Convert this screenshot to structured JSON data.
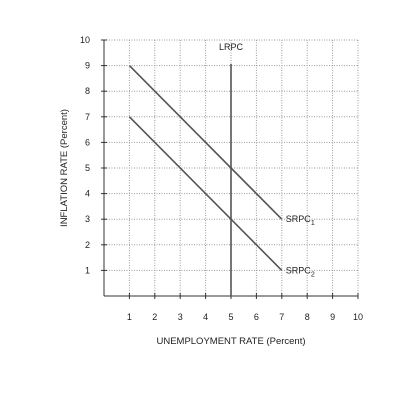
{
  "chart_data": {
    "type": "line",
    "xlabel": "UNEMPLOYMENT RATE (Percent)",
    "ylabel": "INFLATION RATE (Percent)",
    "xlim": [
      0,
      10
    ],
    "ylim": [
      0,
      10
    ],
    "x_ticks": [
      "1",
      "2",
      "3",
      "4",
      "5",
      "6",
      "7",
      "8",
      "9",
      "10"
    ],
    "y_ticks": [
      "1",
      "2",
      "3",
      "4",
      "5",
      "6",
      "7",
      "8",
      "9",
      "10"
    ],
    "grid": true,
    "series": [
      {
        "name": "SRPC",
        "subscript": "1",
        "x": [
          1,
          7
        ],
        "y": [
          9,
          3
        ],
        "color": "#555555"
      },
      {
        "name": "SRPC",
        "subscript": "2",
        "x": [
          1,
          7
        ],
        "y": [
          7,
          1
        ],
        "color": "#555555"
      }
    ],
    "vertical_lines": [
      {
        "name": "LRPC",
        "x": 5,
        "color": "#555555"
      }
    ]
  }
}
